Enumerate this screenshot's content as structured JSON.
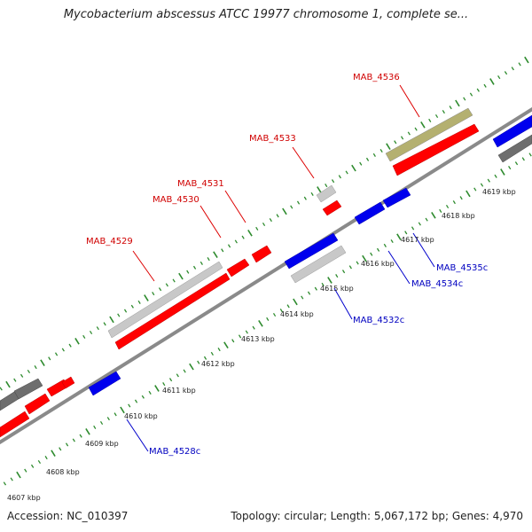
{
  "header": {
    "title": "Mycobacterium abscessus ATCC 19977 chromosome 1, complete se..."
  },
  "footer": {
    "accession": "Accession: NC_010397",
    "summary": "Topology: circular; Length: 5,067,172 bp; Genes: 4,970"
  },
  "colors": {
    "forward": "#ff0000",
    "reverse": "#0000ee",
    "gray": "#c8c8c8",
    "darkgray": "#6e6e6e",
    "olive": "#b4b070",
    "tick": "#2e8b2e",
    "backbone": "#8a8a8a"
  },
  "ruler": {
    "ticks": [
      "4607 kbp",
      "4608 kbp",
      "4609 kbp",
      "4610 kbp",
      "4611 kbp",
      "4612 kbp",
      "4613 kbp",
      "4614 kbp",
      "4615 kbp",
      "4616 kbp",
      "4617 kbp",
      "4618 kbp",
      "4619 kbp"
    ]
  },
  "gene_labels": [
    {
      "text": "MAB_4529",
      "strand": "forward"
    },
    {
      "text": "MAB_4530",
      "strand": "forward"
    },
    {
      "text": "MAB_4531",
      "strand": "forward"
    },
    {
      "text": "MAB_4533",
      "strand": "forward"
    },
    {
      "text": "MAB_4536",
      "strand": "forward"
    },
    {
      "text": "MAB_4528c",
      "strand": "reverse"
    },
    {
      "text": "MAB_4532c",
      "strand": "reverse"
    },
    {
      "text": "MAB_4534c",
      "strand": "reverse"
    },
    {
      "text": "MAB_4535c",
      "strand": "reverse"
    }
  ]
}
